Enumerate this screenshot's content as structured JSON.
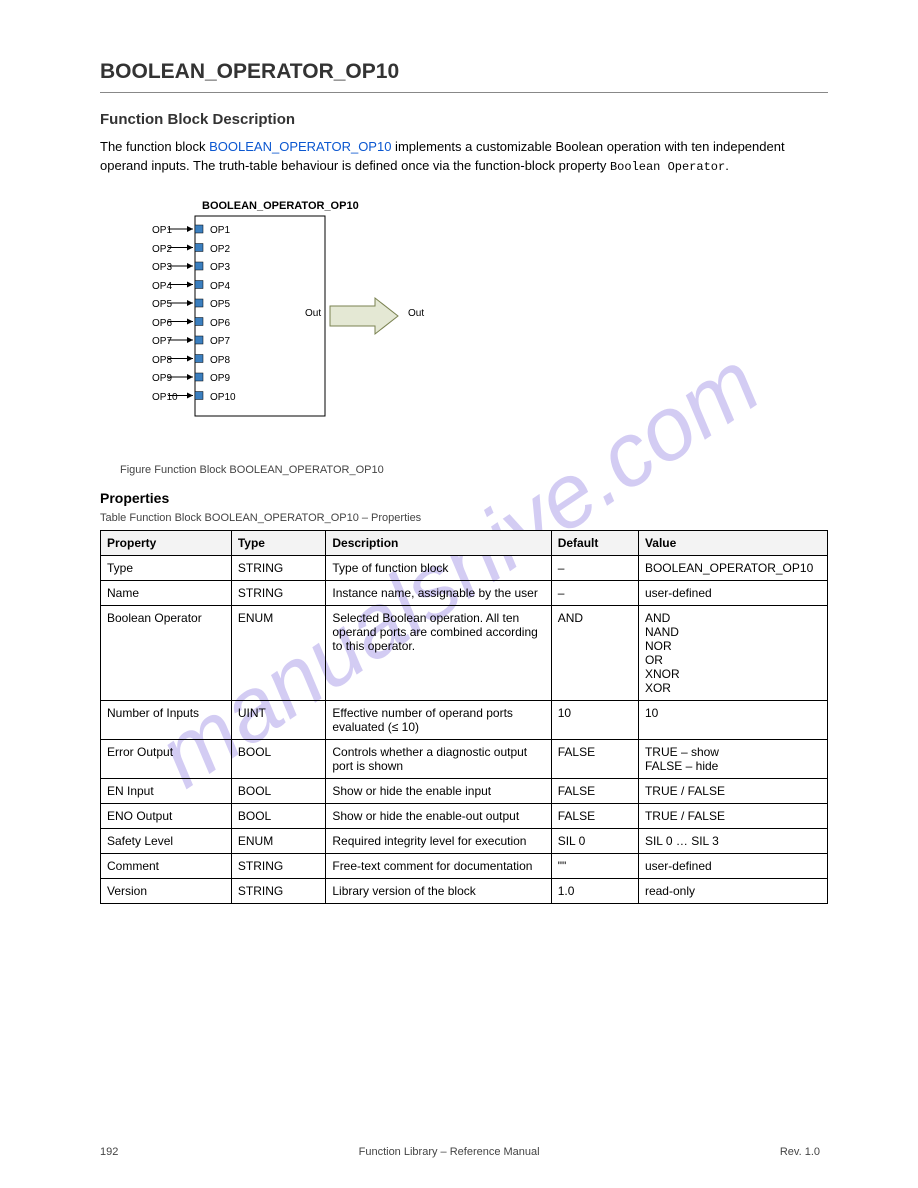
{
  "watermark": {
    "text": "manualshive.com",
    "color": "rgba(128,110,220,0.35)"
  },
  "title": "BOOLEAN_OPERATOR_OP10",
  "section_heading": "Function Block Description",
  "intro": {
    "before_link": "The function block ",
    "linked": "BOOLEAN_OPERATOR_OP10",
    "after_link": " implements a customizable Boolean operation with ten independent operand inputs. The truth-table behaviour is defined once via the function-block property "
  },
  "diagram": {
    "title": "BOOLEAN_OPERATOR_OP10",
    "left_col": [
      "OP1",
      "OP2",
      "OP3",
      "OP4",
      "OP5",
      "OP6",
      "OP7",
      "OP8",
      "OP9",
      "OP10"
    ],
    "inside_col": [
      "OP1",
      "OP2",
      "OP3",
      "OP4",
      "OP5",
      "OP6",
      "OP7",
      "OP8",
      "OP9",
      "OP10"
    ],
    "out_l": "Out",
    "out_r": "Out",
    "port_fill": "#3b7fbf",
    "box_stroke": "#000000",
    "out_arrow_fill": "#e4e8d4",
    "out_arrow_stroke": "#7a8251"
  },
  "caption_fig": "Figure Function Block BOOLEAN_OPERATOR_OP10",
  "props_heading": "Properties",
  "caption_tbl": "Table Function Block BOOLEAN_OPERATOR_OP10 – Properties",
  "table": {
    "header_bg": "#f3f3f3",
    "columns": [
      "Property",
      "Type",
      "Description",
      "Default",
      "Value"
    ],
    "rows": [
      [
        "Type",
        "STRING",
        "Type of function block",
        "–",
        "BOOLEAN_OPERATOR_OP10"
      ],
      [
        "Name",
        "STRING",
        "Instance name, assignable by the user",
        "–",
        "user-defined"
      ],
      [
        "Boolean Operator",
        "ENUM",
        "Selected Boolean operation. All ten operand ports are combined according to this operator.",
        "AND",
        "AND\nNAND\nNOR\nOR\nXNOR\nXOR"
      ],
      [
        "Number of Inputs",
        "UINT",
        "Effective number of operand ports evaluated (≤ 10)",
        "10",
        "10"
      ],
      [
        "Error Output",
        "BOOL",
        "Controls whether a diagnostic output port is shown",
        "FALSE",
        "TRUE  – show\nFALSE – hide"
      ],
      [
        "EN Input",
        "BOOL",
        "Show or hide the enable input",
        "FALSE",
        "TRUE / FALSE"
      ],
      [
        "ENO Output",
        "BOOL",
        "Show or hide the enable-out output",
        "FALSE",
        "TRUE / FALSE"
      ],
      [
        "Safety Level",
        "ENUM",
        "Required integrity level for execution",
        "SIL 0",
        "SIL 0 … SIL 3"
      ],
      [
        "Comment",
        "STRING",
        "Free-text comment for documentation",
        "\"\"",
        "user-defined"
      ],
      [
        "Version",
        "STRING",
        "Library version of the block",
        "1.0",
        "read-only"
      ]
    ]
  },
  "footer": {
    "page": "192",
    "doc": "Function Library – Reference Manual",
    "rev": "Rev. 1.0"
  }
}
